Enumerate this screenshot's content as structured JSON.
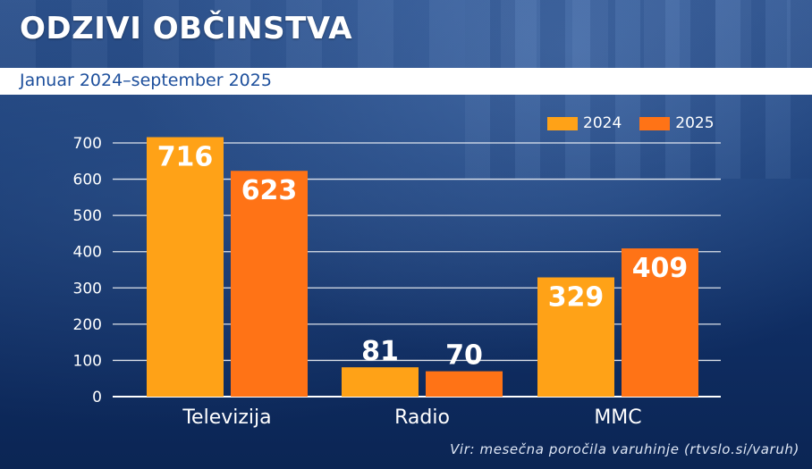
{
  "header": {
    "title": "ODZIVI OBČINSTVA",
    "subtitle": "Januar 2024–september 2025"
  },
  "source": "Vir: mesečna poročila varuhinje (rtvslo.si/varuh)",
  "colors": {
    "s2024": "#ffa217",
    "s2025": "#ff7316",
    "grid": "#ffffff",
    "text": "#ffffff"
  },
  "chart_data": {
    "type": "bar",
    "title": "ODZIVI OBČINSTVA",
    "subtitle": "Januar 2024–september 2025",
    "categories": [
      "Televizija",
      "Radio",
      "MMC"
    ],
    "series": [
      {
        "name": "2024",
        "values": [
          716,
          81,
          329
        ]
      },
      {
        "name": "2025",
        "values": [
          623,
          70,
          409
        ]
      }
    ],
    "ylim": [
      0,
      700
    ],
    "yticks": [
      0,
      100,
      200,
      300,
      400,
      500,
      600,
      700
    ],
    "xlabel": "",
    "ylabel": "",
    "grid": true,
    "legend_position": "top-right"
  }
}
